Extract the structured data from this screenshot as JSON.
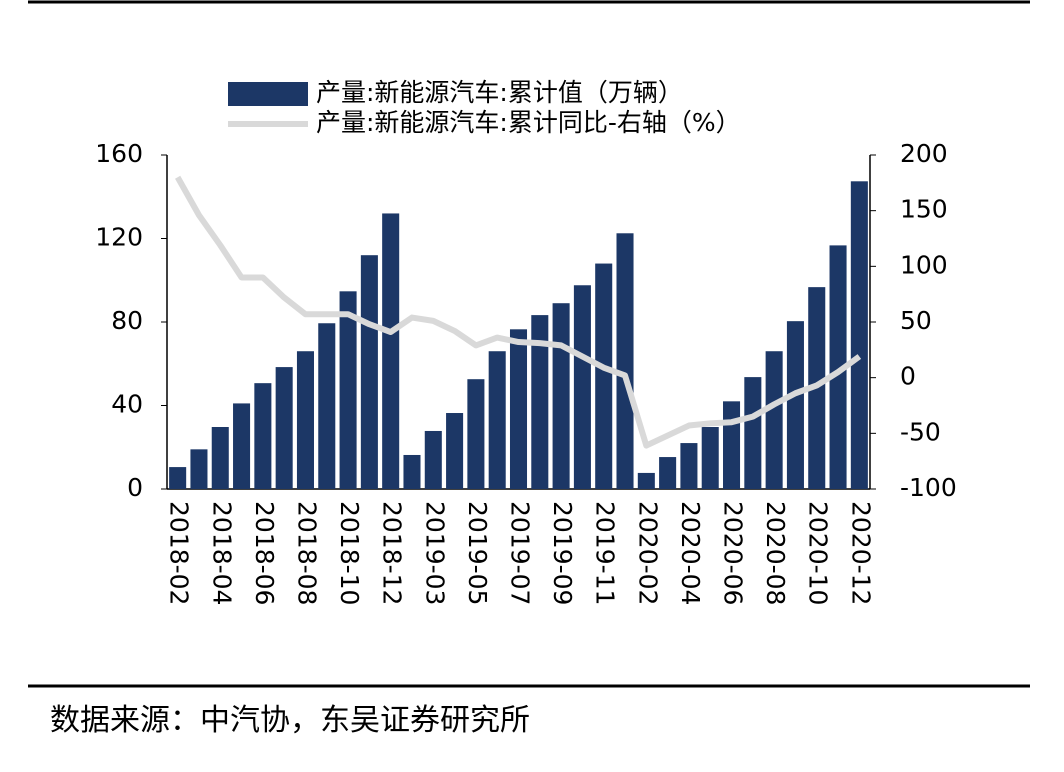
{
  "chart_data": {
    "type": "bar",
    "categories": [
      "2018-02",
      null,
      "2018-04",
      null,
      "2018-06",
      null,
      "2018-08",
      null,
      "2018-10",
      null,
      "2018-12",
      null,
      "2019-03",
      null,
      "2019-05",
      null,
      "2019-07",
      null,
      "2019-09",
      null,
      "2019-11",
      null,
      "2020-02",
      null,
      "2020-04",
      null,
      "2020-06",
      null,
      "2020-08",
      null,
      "2020-10",
      null,
      "2020-12"
    ],
    "series": [
      {
        "name": "产量:新能源汽车:累计值（万辆）",
        "type": "bar",
        "axis": "y",
        "color": "#1c3766",
        "values": [
          10.5,
          19,
          29.7,
          41,
          50.7,
          58.4,
          66,
          79.4,
          94.7,
          112,
          132,
          16.3,
          27.8,
          36.4,
          52.6,
          66,
          76.5,
          83.3,
          89,
          97.6,
          108,
          122.5,
          7.7,
          15.3,
          22,
          29.7,
          42,
          53.6,
          66,
          80.4,
          96.7,
          116.7,
          147.4
        ]
      },
      {
        "name": "产量:新能源汽车:累计同比-右轴（%）",
        "type": "line",
        "axis": "y2",
        "color": "#d9d9d9",
        "values": [
          180,
          146,
          119,
          90,
          90,
          72,
          57,
          57,
          57,
          48,
          41,
          54,
          51,
          42,
          29,
          36,
          32,
          31,
          29,
          19,
          9,
          2,
          -61,
          -52,
          -43,
          -41,
          -40,
          -35,
          -24,
          -14,
          -7,
          5,
          19
        ]
      }
    ],
    "ylim": [
      0,
      160
    ],
    "yticks": [
      0,
      40,
      80,
      120,
      160
    ],
    "y2lim": [
      -100,
      200
    ],
    "y2ticks": [
      -100,
      -50,
      0,
      50,
      100,
      150,
      200
    ],
    "source": "数据来源：中汽协，东吴证券研究所"
  }
}
